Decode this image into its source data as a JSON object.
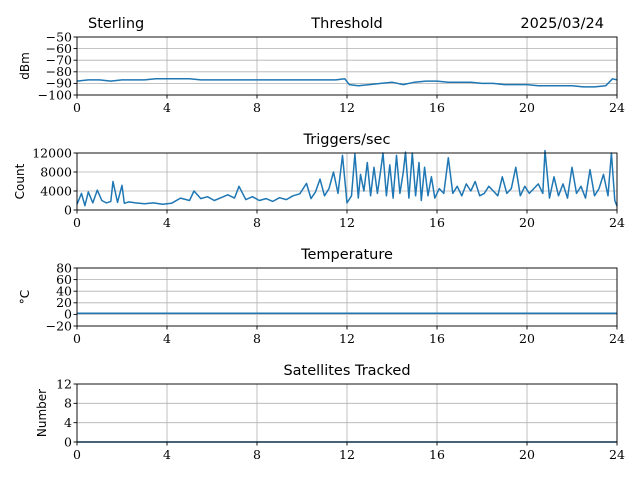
{
  "header": {
    "station": "Sterling",
    "date": "2025/03/24"
  },
  "line_color": "#1f77b4",
  "chart_data": [
    {
      "type": "line",
      "title": "Threshold",
      "ylabel": "dBm",
      "xlabel": "",
      "xlim": [
        0,
        24
      ],
      "ylim": [
        -100,
        -50
      ],
      "xticks": [
        0,
        4,
        8,
        12,
        16,
        20,
        24
      ],
      "yticks": [
        -100,
        -90,
        -80,
        -70,
        -60,
        -50
      ],
      "ytick_labels": [
        "−100",
        "−90",
        "−80",
        "−70",
        "−60",
        "−50"
      ],
      "grid": true,
      "series": [
        {
          "x": [
            0,
            0.5,
            1,
            1.5,
            2,
            2.5,
            3,
            3.5,
            4,
            4.5,
            5,
            5.5,
            6,
            6.5,
            7,
            7.5,
            8,
            8.5,
            9,
            9.5,
            10,
            10.5,
            11,
            11.5,
            11.9,
            12.1,
            12.5,
            13,
            13.5,
            14,
            14.5,
            15,
            15.5,
            16,
            16.5,
            17,
            17.5,
            18,
            18.5,
            19,
            19.5,
            20,
            20.5,
            21,
            21.5,
            22,
            22.5,
            23,
            23.5,
            23.8,
            24
          ],
          "y": [
            -88,
            -87,
            -87,
            -88,
            -87,
            -87,
            -87,
            -86,
            -86,
            -86,
            -86,
            -87,
            -87,
            -87,
            -87,
            -87,
            -87,
            -87,
            -87,
            -87,
            -87,
            -87,
            -87,
            -87,
            -86,
            -91,
            -92,
            -91,
            -90,
            -89,
            -91,
            -89,
            -88,
            -88,
            -89,
            -89,
            -89,
            -90,
            -90,
            -91,
            -91,
            -91,
            -92,
            -92,
            -92,
            -92,
            -93,
            -93,
            -92,
            -86,
            -87
          ]
        }
      ]
    },
    {
      "type": "line",
      "title": "Triggers/sec",
      "ylabel": "Count",
      "xlabel": "",
      "xlim": [
        0,
        24
      ],
      "ylim": [
        0,
        12000
      ],
      "xticks": [
        0,
        4,
        8,
        12,
        16,
        20,
        24
      ],
      "yticks": [
        0,
        4000,
        8000,
        12000
      ],
      "ytick_labels": [
        "0",
        "4000",
        "8000",
        "12000"
      ],
      "grid": true,
      "series": [
        {
          "x": [
            0,
            0.2,
            0.35,
            0.5,
            0.7,
            0.9,
            1.1,
            1.3,
            1.5,
            1.6,
            1.8,
            2.0,
            2.1,
            2.3,
            2.6,
            3.0,
            3.4,
            3.8,
            4.2,
            4.6,
            5.0,
            5.2,
            5.5,
            5.8,
            6.1,
            6.4,
            6.7,
            7.0,
            7.2,
            7.5,
            7.8,
            8.1,
            8.4,
            8.7,
            9.0,
            9.3,
            9.6,
            9.9,
            10.2,
            10.4,
            10.6,
            10.8,
            11.0,
            11.2,
            11.4,
            11.6,
            11.8,
            12.0,
            12.2,
            12.35,
            12.5,
            12.6,
            12.75,
            12.9,
            13.05,
            13.2,
            13.35,
            13.5,
            13.6,
            13.75,
            13.9,
            14.05,
            14.2,
            14.35,
            14.5,
            14.6,
            14.75,
            14.9,
            15.05,
            15.2,
            15.3,
            15.45,
            15.6,
            15.75,
            15.9,
            16.1,
            16.3,
            16.5,
            16.7,
            16.9,
            17.1,
            17.3,
            17.5,
            17.7,
            17.9,
            18.1,
            18.3,
            18.5,
            18.7,
            18.9,
            19.1,
            19.3,
            19.5,
            19.7,
            19.9,
            20.1,
            20.3,
            20.5,
            20.7,
            20.8,
            21.0,
            21.2,
            21.4,
            21.6,
            21.8,
            22.0,
            22.2,
            22.4,
            22.6,
            22.8,
            23.0,
            23.2,
            23.4,
            23.6,
            23.75,
            23.9,
            24.0
          ],
          "y": [
            1200,
            3500,
            900,
            3800,
            1500,
            4200,
            2000,
            1500,
            1800,
            6000,
            1600,
            5200,
            1400,
            1700,
            1500,
            1300,
            1500,
            1200,
            1400,
            2500,
            2000,
            4000,
            2400,
            2800,
            2000,
            2600,
            3200,
            2500,
            5000,
            2200,
            2800,
            2000,
            2400,
            1800,
            2600,
            2200,
            3000,
            3400,
            5600,
            2400,
            3800,
            6500,
            3000,
            4500,
            8000,
            3500,
            11500,
            1500,
            3000,
            11800,
            2500,
            7500,
            4000,
            10000,
            3000,
            9000,
            3500,
            8500,
            12000,
            3000,
            9500,
            2500,
            11500,
            3500,
            8000,
            12200,
            2500,
            12000,
            3000,
            10000,
            2000,
            9000,
            3000,
            7000,
            2500,
            4500,
            3500,
            11000,
            3500,
            5000,
            3000,
            5500,
            4000,
            6000,
            3000,
            3500,
            5000,
            4000,
            3000,
            7000,
            3500,
            4500,
            9000,
            3000,
            5000,
            3500,
            4500,
            5500,
            3500,
            12500,
            2500,
            7000,
            3000,
            5500,
            2500,
            9000,
            3500,
            5000,
            2500,
            8500,
            3000,
            4500,
            7500,
            3000,
            12000,
            2000,
            800
          ]
        }
      ]
    },
    {
      "type": "line",
      "title": "Temperature",
      "ylabel": "°C",
      "xlabel": "",
      "xlim": [
        0,
        24
      ],
      "ylim": [
        -20,
        80
      ],
      "xticks": [
        0,
        4,
        8,
        12,
        16,
        20,
        24
      ],
      "yticks": [
        -20,
        0,
        20,
        40,
        60,
        80
      ],
      "ytick_labels": [
        "−20",
        "0",
        "20",
        "40",
        "60",
        "80"
      ],
      "grid": true,
      "series": [
        {
          "x": [
            0,
            24
          ],
          "y": [
            2,
            2
          ]
        }
      ]
    },
    {
      "type": "line",
      "title": "Satellites Tracked",
      "ylabel": "Number",
      "xlabel": "",
      "xlim": [
        0,
        24
      ],
      "ylim": [
        0,
        12
      ],
      "xticks": [
        0,
        4,
        8,
        12,
        16,
        20,
        24
      ],
      "yticks": [
        0,
        4,
        8,
        12
      ],
      "ytick_labels": [
        "0",
        "4",
        "8",
        "12"
      ],
      "grid": true,
      "series": [
        {
          "x": [
            0,
            24
          ],
          "y": [
            0,
            0
          ]
        }
      ]
    }
  ]
}
